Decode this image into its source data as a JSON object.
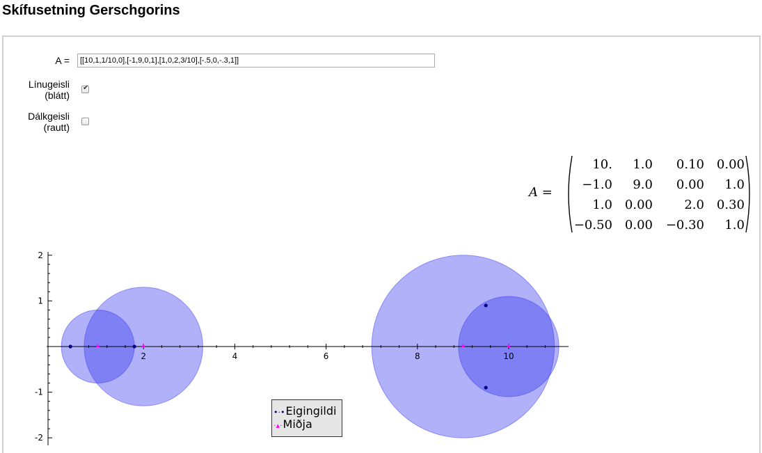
{
  "page": {
    "title": "Skífusetning Gerschgorins"
  },
  "controls": {
    "matrix_label": "A =",
    "matrix_value": "[[10,1,1/10,0],[-1,9,0,1],[1,0,2,3/10],[-.5,0,-.3,1]]",
    "row_discs": {
      "label_line1": "Línugeisli",
      "label_line2": "(blátt)",
      "checked": true
    },
    "column_discs": {
      "label_line1": "Dálkgeisli",
      "label_line2": "(rautt)",
      "checked": false
    }
  },
  "matrix_display": {
    "lhs": "A",
    "equals": "=",
    "rows": [
      [
        "10.",
        "1.0",
        "0.10",
        "0.00"
      ],
      [
        "−1.0",
        "9.0",
        "0.00",
        "1.0"
      ],
      [
        "1.0",
        "0.00",
        "2.0",
        "0.30"
      ],
      [
        "−0.50",
        "0.00",
        "−0.30",
        "1.0"
      ]
    ]
  },
  "chart_data": {
    "type": "scatter",
    "xlim": [
      -0.95,
      11.35
    ],
    "ylim": [
      -2.05,
      2.05
    ],
    "x_ticks": [
      2,
      4,
      6,
      8,
      10
    ],
    "y_ticks": [
      2,
      1,
      -1,
      -2
    ],
    "x_tick_labels": [
      "2",
      "4",
      "6",
      "8",
      "10"
    ],
    "y_tick_labels": [
      "2",
      "1",
      "-1",
      "-2"
    ],
    "disc_color": "#3333ee",
    "discs": [
      {
        "center": [
          10,
          0
        ],
        "radius": 1.1
      },
      {
        "center": [
          9,
          0
        ],
        "radius": 2.0
      },
      {
        "center": [
          2,
          0
        ],
        "radius": 1.3
      },
      {
        "center": [
          1,
          0
        ],
        "radius": 0.8
      }
    ],
    "series": [
      {
        "name": "Eigingildi",
        "color": "#000080",
        "points": [
          [
            0.4,
            0
          ],
          [
            1.8,
            0
          ],
          [
            9.5,
            0.9
          ],
          [
            9.5,
            -0.9
          ]
        ]
      },
      {
        "name": "Miðja",
        "color": "#ff00ff",
        "points": [
          [
            10,
            0
          ],
          [
            9,
            0
          ],
          [
            2,
            0
          ],
          [
            1,
            0
          ]
        ]
      }
    ],
    "legend": {
      "placement": "bottom-center"
    }
  }
}
